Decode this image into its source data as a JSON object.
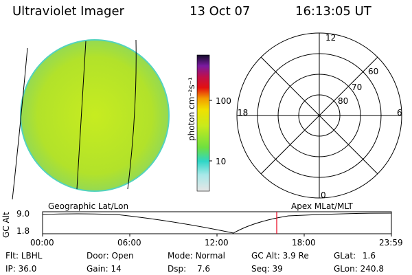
{
  "header": {
    "instrument": "Ultraviolet Imager",
    "date": "13 Oct 07",
    "time": "16:13:05 UT"
  },
  "colorbar": {
    "unit_label": "photon cm⁻²s⁻¹",
    "ticks": [
      "100",
      "10"
    ]
  },
  "polar_plot": {
    "mlt_labels": [
      "12",
      "18",
      "6",
      "0"
    ],
    "mlat_labels": [
      "60",
      "70",
      "80"
    ]
  },
  "altitude_panel": {
    "ylabel": "GC Alt",
    "y_ticks": [
      "9.0",
      "1.8"
    ],
    "left_caption": "Geographic Lat/Lon",
    "right_caption": "Apex MLat/MLT",
    "x_ticks": [
      "00:00",
      "06:00",
      "12:00",
      "18:00",
      "23:59"
    ]
  },
  "status": {
    "row1": [
      {
        "label": "Flt:",
        "value": "LBHL"
      },
      {
        "label": "Door:",
        "value": "Open"
      },
      {
        "label": "Mode:",
        "value": "Normal"
      },
      {
        "label": "GC Alt:",
        "value": "3.9 Re"
      },
      {
        "label": "GLat:",
        "value": "1.6"
      }
    ],
    "row2": [
      {
        "label": "IP:",
        "value": "36.0"
      },
      {
        "label": "Gain:",
        "value": "14"
      },
      {
        "label": "Dsp:",
        "value": "7.6"
      },
      {
        "label": "Seq:",
        "value": "39"
      },
      {
        "label": "GLon:",
        "value": "240.8"
      }
    ]
  },
  "colors": {
    "disk_fill": "#b9e71f",
    "disk_edge": "#3fd6c8",
    "marker": "#e8001c",
    "lines": "#000000"
  }
}
